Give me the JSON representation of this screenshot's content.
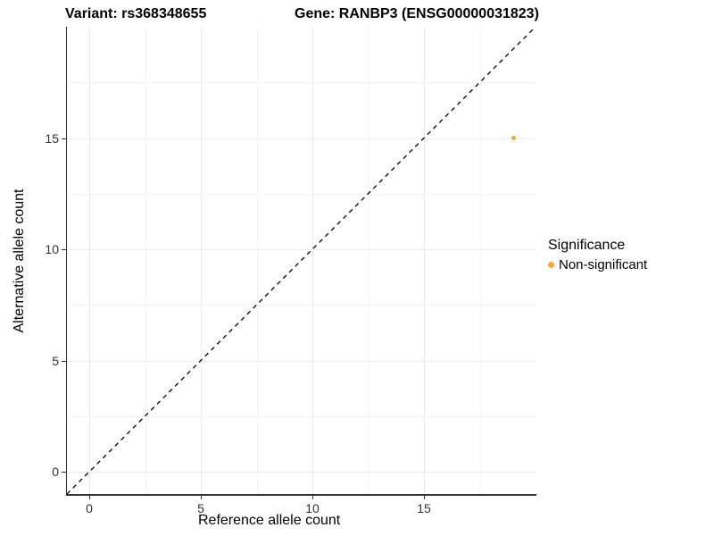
{
  "titles": {
    "variant": "Variant: rs368348655",
    "gene": "Gene: RANBP3 (ENSG00000031823)"
  },
  "chart_data": {
    "type": "scatter",
    "title_variant": "Variant: rs368348655",
    "title_gene": "Gene: RANBP3 (ENSG00000031823)",
    "xlabel": "Reference allele count",
    "ylabel": "Alternative allele count",
    "xlim": [
      -1,
      20
    ],
    "ylim": [
      -1,
      20
    ],
    "x_ticks": [
      0,
      5,
      10,
      15
    ],
    "y_ticks": [
      0,
      5,
      10,
      15
    ],
    "x_minor_ticks": [
      2.5,
      7.5,
      12.5,
      17.5
    ],
    "y_minor_ticks": [
      2.5,
      7.5,
      12.5,
      17.5
    ],
    "grid": true,
    "points": [
      {
        "x": 19,
        "y": 15,
        "series": "Non-significant"
      }
    ],
    "identity_line": {
      "style": "dashed",
      "color": "#000000",
      "from": [
        -1,
        -1
      ],
      "to": [
        20,
        20
      ]
    },
    "legend": {
      "position": "right",
      "title": "Significance",
      "items": [
        {
          "label": "Non-significant",
          "color": "#faa43a"
        }
      ]
    }
  },
  "colors": {
    "background": "#ffffff",
    "grid_major": "#ebebeb",
    "grid_minor": "#f4f4f4",
    "axis_line": "#333333",
    "tick_text": "#303030",
    "point": "#faa43a"
  }
}
